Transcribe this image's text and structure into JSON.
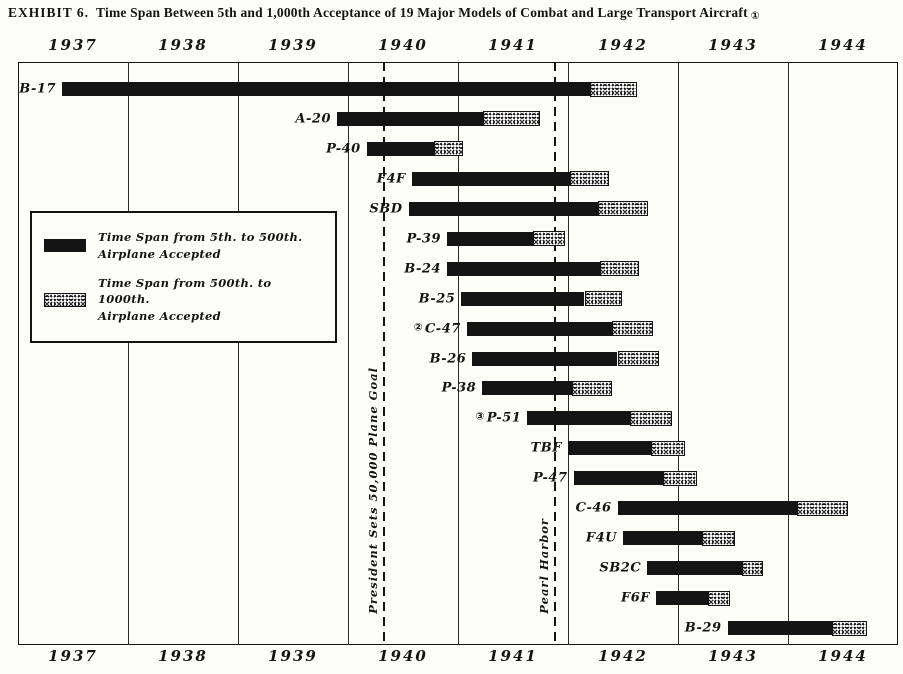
{
  "chart_data": {
    "type": "bar",
    "variant": "gantt-timespan",
    "title": "EXHIBIT 6. Time Span Between 5th and 1,000th Acceptance of 19 Major Models of Combat and Large Transport Aircraft",
    "title_parts": {
      "exhibit": "EXHIBIT 6.",
      "text": "Time Span Between 5th and 1,000th Acceptance of 19 Major Models of Combat and Large Transport Aircraft",
      "footnote_marker": "①"
    },
    "x_range": [
      1937,
      1945
    ],
    "x_tick_labels": [
      "1937",
      "1938",
      "1939",
      "1940",
      "1941",
      "1942",
      "1943",
      "1944"
    ],
    "x_axis_shown": "top and bottom",
    "units": "calendar year (decimal fraction of year)",
    "grid": "vertical year lines on",
    "legend_position": "upper-left inside plot",
    "legend": {
      "solid": {
        "line1": "Time Span from 5th. to 500th.",
        "line2": "Airplane Accepted"
      },
      "stippled": {
        "line1": "Time Span from 500th. to 1000th.",
        "line2": "Airplane Accepted"
      }
    },
    "annotations": [
      {
        "label": "President Sets 50,000 Plane Goal",
        "year": 1940.33
      },
      {
        "label": "Pearl Harbor",
        "year": 1941.88
      }
    ],
    "series": [
      {
        "model": "B-17",
        "footnote_marker": "",
        "accept_5th": 1937.4,
        "accept_500th": 1942.2,
        "accept_1000th": 1942.63
      },
      {
        "model": "A-20",
        "footnote_marker": "",
        "accept_5th": 1939.9,
        "accept_500th": 1941.23,
        "accept_1000th": 1941.75
      },
      {
        "model": "P-40",
        "footnote_marker": "",
        "accept_5th": 1940.17,
        "accept_500th": 1940.78,
        "accept_1000th": 1941.05
      },
      {
        "model": "F4F",
        "footnote_marker": "",
        "accept_5th": 1940.58,
        "accept_500th": 1942.02,
        "accept_1000th": 1942.37
      },
      {
        "model": "SBD",
        "footnote_marker": "",
        "accept_5th": 1940.55,
        "accept_500th": 1942.27,
        "accept_1000th": 1942.73
      },
      {
        "model": "P-39",
        "footnote_marker": "",
        "accept_5th": 1940.9,
        "accept_500th": 1941.68,
        "accept_1000th": 1941.97
      },
      {
        "model": "B-24",
        "footnote_marker": "",
        "accept_5th": 1940.9,
        "accept_500th": 1942.29,
        "accept_1000th": 1942.65
      },
      {
        "model": "B-25",
        "footnote_marker": "",
        "accept_5th": 1941.03,
        "accept_500th": 1942.15,
        "accept_1000th": 1942.49
      },
      {
        "model": "C-47",
        "footnote_marker": "②",
        "accept_5th": 1941.08,
        "accept_500th": 1942.4,
        "accept_1000th": 1942.77
      },
      {
        "model": "B-26",
        "footnote_marker": "",
        "accept_5th": 1941.13,
        "accept_500th": 1942.45,
        "accept_1000th": 1942.83
      },
      {
        "model": "P-38",
        "footnote_marker": "",
        "accept_5th": 1941.22,
        "accept_500th": 1942.04,
        "accept_1000th": 1942.4
      },
      {
        "model": "P-51",
        "footnote_marker": "③",
        "accept_5th": 1941.63,
        "accept_500th": 1942.56,
        "accept_1000th": 1942.95
      },
      {
        "model": "TBF",
        "footnote_marker": "",
        "accept_5th": 1942.0,
        "accept_500th": 1942.75,
        "accept_1000th": 1943.06
      },
      {
        "model": "P-47",
        "footnote_marker": "",
        "accept_5th": 1942.05,
        "accept_500th": 1942.86,
        "accept_1000th": 1943.17
      },
      {
        "model": "C-46",
        "footnote_marker": "",
        "accept_5th": 1942.45,
        "accept_500th": 1944.08,
        "accept_1000th": 1944.55
      },
      {
        "model": "F4U",
        "footnote_marker": "",
        "accept_5th": 1942.5,
        "accept_500th": 1943.22,
        "accept_1000th": 1943.52
      },
      {
        "model": "SB2C",
        "footnote_marker": "",
        "accept_5th": 1942.72,
        "accept_500th": 1943.58,
        "accept_1000th": 1943.77
      },
      {
        "model": "F6F",
        "footnote_marker": "",
        "accept_5th": 1942.8,
        "accept_500th": 1943.27,
        "accept_1000th": 1943.47
      },
      {
        "model": "B-29",
        "footnote_marker": "",
        "accept_5th": 1943.45,
        "accept_500th": 1944.4,
        "accept_1000th": 1944.72
      }
    ]
  },
  "colors": {
    "ink": "#141414",
    "paper": "#fdfdfa",
    "bar_solid": "#141414",
    "bar_stipple_bg": "#ffffff"
  }
}
